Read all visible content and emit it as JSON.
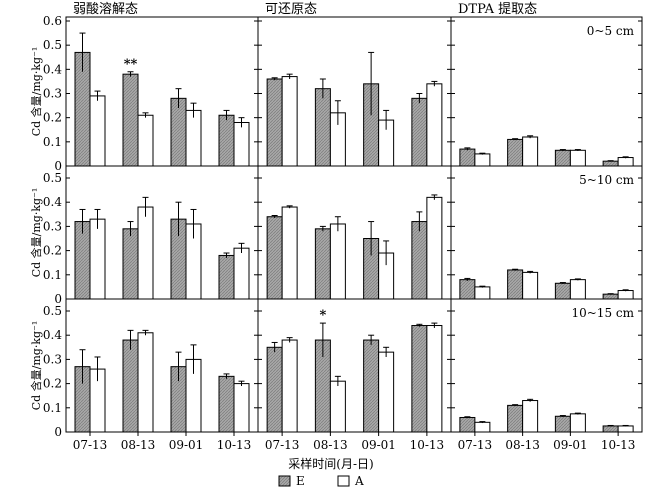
{
  "chart_data": {
    "type": "bar",
    "categories": [
      "07-13",
      "08-13",
      "09-01",
      "10-13"
    ],
    "columns": [
      "弱酸溶解态",
      "可还原态",
      "DTPA 提取态"
    ],
    "rows": [
      "0~5 cm",
      "5~10 cm",
      "10~15 cm"
    ],
    "ylabel": "Cd 含量/mg·kg⁻¹",
    "xlabel": "采样时间(月-日)",
    "legend": [
      "E",
      "A"
    ],
    "legend_position": "bottom",
    "grid": false,
    "rows_config": [
      {
        "ylim": [
          0,
          0.6
        ],
        "yticks": [
          "0",
          "0.1",
          "0.2",
          "0.3",
          "0.4",
          "0.5",
          "0.6"
        ]
      },
      {
        "ylim": [
          0,
          0.5
        ],
        "yticks": [
          "0",
          "0.1",
          "0.2",
          "0.3",
          "0.4",
          "0.5"
        ]
      },
      {
        "ylim": [
          0,
          0.5
        ],
        "yticks": [
          "0",
          "0.1",
          "0.2",
          "0.3",
          "0.4",
          "0.5"
        ]
      }
    ],
    "panels": [
      [
        {
          "E": [
            0.47,
            0.38,
            0.28,
            0.21
          ],
          "E_err": [
            0.08,
            0.01,
            0.04,
            0.02
          ],
          "A": [
            0.29,
            0.21,
            0.23,
            0.18
          ],
          "A_err": [
            0.02,
            0.01,
            0.03,
            0.02
          ],
          "sig": [
            "",
            "**",
            "",
            ""
          ]
        },
        {
          "E": [
            0.36,
            0.32,
            0.34,
            0.28
          ],
          "E_err": [
            0.005,
            0.04,
            0.13,
            0.02
          ],
          "A": [
            0.37,
            0.22,
            0.19,
            0.34
          ],
          "A_err": [
            0.01,
            0.05,
            0.04,
            0.01
          ],
          "sig": [
            "",
            "",
            "",
            ""
          ]
        },
        {
          "E": [
            0.07,
            0.11,
            0.065,
            0.02
          ],
          "E_err": [
            0.005,
            0.003,
            0.003,
            0.002
          ],
          "A": [
            0.05,
            0.12,
            0.065,
            0.035
          ],
          "A_err": [
            0.003,
            0.005,
            0.003,
            0.003
          ],
          "sig": [
            "",
            "",
            "",
            ""
          ]
        }
      ],
      [
        {
          "E": [
            0.32,
            0.29,
            0.33,
            0.18
          ],
          "E_err": [
            0.05,
            0.03,
            0.07,
            0.01
          ],
          "A": [
            0.33,
            0.38,
            0.31,
            0.21
          ],
          "A_err": [
            0.04,
            0.04,
            0.06,
            0.02
          ],
          "sig": [
            "",
            "",
            "",
            ""
          ]
        },
        {
          "E": [
            0.34,
            0.29,
            0.25,
            0.32
          ],
          "E_err": [
            0.005,
            0.01,
            0.07,
            0.04
          ],
          "A": [
            0.38,
            0.31,
            0.19,
            0.42
          ],
          "A_err": [
            0.005,
            0.03,
            0.05,
            0.01
          ],
          "sig": [
            "",
            "",
            "",
            ""
          ]
        },
        {
          "E": [
            0.08,
            0.12,
            0.065,
            0.02
          ],
          "E_err": [
            0.005,
            0.003,
            0.003,
            0.002
          ],
          "A": [
            0.05,
            0.11,
            0.08,
            0.035
          ],
          "A_err": [
            0.003,
            0.004,
            0.003,
            0.003
          ],
          "sig": [
            "",
            "",
            "",
            ""
          ]
        }
      ],
      [
        {
          "E": [
            0.27,
            0.38,
            0.27,
            0.23
          ],
          "E_err": [
            0.07,
            0.04,
            0.06,
            0.01
          ],
          "A": [
            0.26,
            0.41,
            0.3,
            0.2
          ],
          "A_err": [
            0.05,
            0.01,
            0.06,
            0.01
          ],
          "sig": [
            "",
            "",
            "",
            ""
          ]
        },
        {
          "E": [
            0.35,
            0.38,
            0.38,
            0.44
          ],
          "E_err": [
            0.02,
            0.07,
            0.02,
            0.005
          ],
          "A": [
            0.38,
            0.21,
            0.33,
            0.44
          ],
          "A_err": [
            0.01,
            0.02,
            0.02,
            0.01
          ],
          "sig": [
            "",
            "*",
            "",
            ""
          ]
        },
        {
          "E": [
            0.06,
            0.11,
            0.065,
            0.025
          ],
          "E_err": [
            0.003,
            0.003,
            0.003,
            0.002
          ],
          "A": [
            0.04,
            0.13,
            0.075,
            0.025
          ],
          "A_err": [
            0.003,
            0.005,
            0.003,
            0.002
          ],
          "sig": [
            "",
            "",
            "",
            ""
          ]
        }
      ]
    ],
    "colors": {
      "E": "#a6a6a6",
      "A": "#ffffff",
      "axis": "#000000"
    }
  }
}
